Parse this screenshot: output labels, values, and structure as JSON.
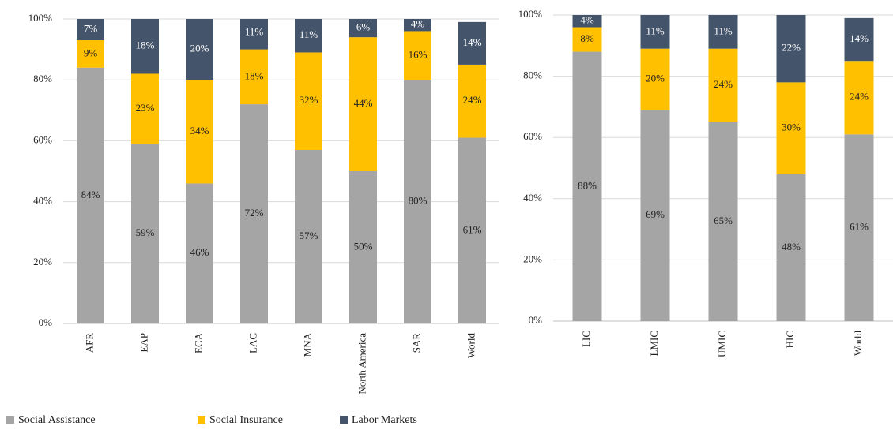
{
  "chart_data": [
    {
      "type": "stacked_bar",
      "categories": [
        "AFR",
        "EAP",
        "ECA",
        "LAC",
        "MNA",
        "North America",
        "SAR",
        "World"
      ],
      "series": [
        {
          "name": "Social Assistance",
          "color": "#a5a5a5",
          "values": [
            84,
            59,
            46,
            72,
            57,
            50,
            80,
            61
          ],
          "value_labels": [
            "84%",
            "59%",
            "46%",
            "72%",
            "57%",
            "50%",
            "80%",
            "61%"
          ]
        },
        {
          "name": "Social Insurance",
          "color": "#ffc000",
          "values": [
            9,
            23,
            34,
            18,
            32,
            44,
            16,
            24
          ],
          "value_labels": [
            "9%",
            "23%",
            "34%",
            "18%",
            "32%",
            "44%",
            "16%",
            "24%"
          ]
        },
        {
          "name": "Labor Markets",
          "color": "#44546a",
          "values": [
            7,
            18,
            20,
            11,
            11,
            6,
            4,
            14
          ],
          "value_labels": [
            "7%",
            "18%",
            "20%",
            "11%",
            "11%",
            "6%",
            "4%",
            "14%"
          ]
        }
      ],
      "ylim": [
        0,
        100
      ],
      "yticks": [
        {
          "value": 0,
          "label": "0%"
        },
        {
          "value": 20,
          "label": "20%"
        },
        {
          "value": 40,
          "label": "40%"
        },
        {
          "value": 60,
          "label": "60%"
        },
        {
          "value": 80,
          "label": "80%"
        },
        {
          "value": 100,
          "label": "100%"
        }
      ],
      "grid": true
    },
    {
      "type": "stacked_bar",
      "categories": [
        "LIC",
        "LMIC",
        "UMIC",
        "HIC",
        "World"
      ],
      "series": [
        {
          "color": "#a5a5a5",
          "values": [
            88,
            69,
            65,
            48,
            61
          ],
          "value_labels": [
            "88%",
            "69%",
            "65%",
            "48%",
            "61%"
          ]
        },
        {
          "color": "#ffc000",
          "values": [
            8,
            20,
            24,
            30,
            24
          ],
          "value_labels": [
            "8%",
            "20%",
            "24%",
            "30%",
            "24%"
          ]
        },
        {
          "color": "#44546a",
          "values": [
            4,
            11,
            11,
            22,
            14
          ],
          "value_labels": [
            "4%",
            "11%",
            "11%",
            "22%",
            "14%"
          ]
        }
      ],
      "ylim": [
        0,
        100
      ],
      "yticks": [
        {
          "value": 0,
          "label": "0%"
        },
        {
          "value": 20,
          "label": "20%"
        },
        {
          "value": 40,
          "label": "40%"
        },
        {
          "value": 60,
          "label": "60%"
        },
        {
          "value": 80,
          "label": "80%"
        },
        {
          "value": 100,
          "label": "100%"
        }
      ],
      "grid": true
    }
  ]
}
